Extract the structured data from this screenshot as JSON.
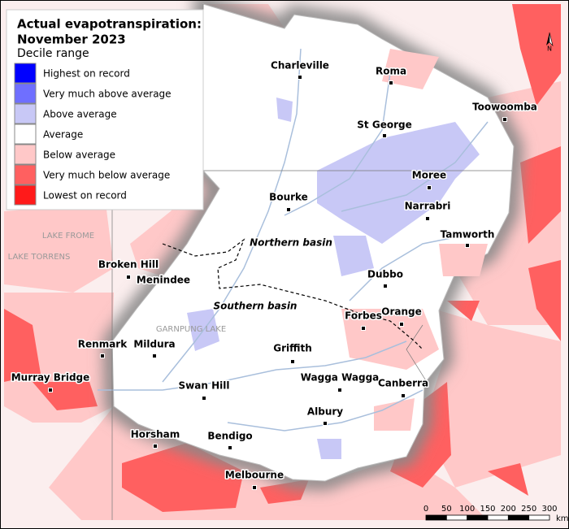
{
  "title_lines": [
    "Actual evapotranspiration:",
    "November 2023"
  ],
  "legend": {
    "heading": "Decile range",
    "items": [
      {
        "label": "Highest on record",
        "color": "#0000ff"
      },
      {
        "label": "Very much above average",
        "color": "#6f6fff"
      },
      {
        "label": "Above average",
        "color": "#c8c8f6"
      },
      {
        "label": "Average",
        "color": "#ffffff"
      },
      {
        "label": "Below average",
        "color": "#ffc8c8"
      },
      {
        "label": "Very much below average",
        "color": "#ff6060"
      },
      {
        "label": "Lowest on record",
        "color": "#ff1a1a"
      }
    ]
  },
  "places": [
    "Charleville",
    "Roma",
    "Toowoomba",
    "St George",
    "Moree",
    "Bourke",
    "Narrabri",
    "Tamworth",
    "Broken Hill",
    "Menindee",
    "Dubbo",
    "Forbes",
    "Orange",
    "Renmark",
    "Mildura",
    "Griffith",
    "Murray Bridge",
    "Swan Hill",
    "Wagga Wagga",
    "Canberra",
    "Albury",
    "Horsham",
    "Bendigo",
    "Melbourne"
  ],
  "regions": [
    "Northern basin",
    "Southern basin"
  ],
  "features": [
    "LAKE FROME",
    "LAKE TORRENS",
    "GARNPUNG LAKE"
  ],
  "scale": {
    "ticks": [
      0,
      50,
      100,
      150,
      200,
      250,
      300
    ],
    "unit": "km"
  },
  "north": "N"
}
